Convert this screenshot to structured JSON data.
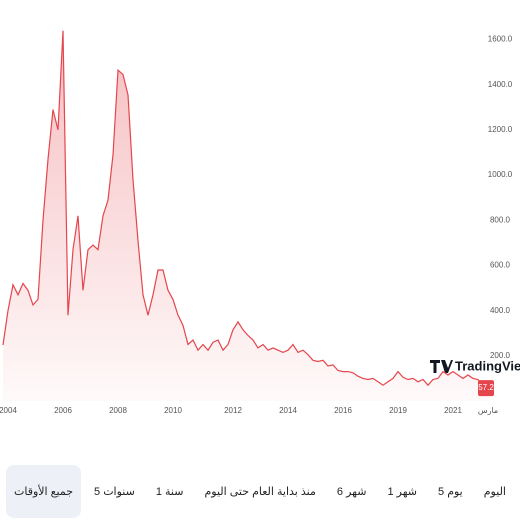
{
  "chart_data": {
    "type": "area",
    "categories": [
      null,
      "2004",
      null,
      null,
      null,
      null,
      null,
      null,
      null,
      null,
      null,
      null,
      "2006",
      null,
      null,
      null,
      null,
      null,
      null,
      null,
      null,
      null,
      null,
      "2008",
      null,
      null,
      null,
      null,
      null,
      null,
      null,
      null,
      null,
      null,
      "2010",
      null,
      null,
      null,
      null,
      null,
      null,
      null,
      null,
      null,
      null,
      null,
      "2012",
      null,
      null,
      null,
      null,
      null,
      null,
      null,
      null,
      null,
      null,
      "2014",
      null,
      null,
      null,
      null,
      null,
      null,
      null,
      null,
      null,
      null,
      "2016",
      null,
      null,
      null,
      null,
      null,
      null,
      null,
      null,
      null,
      null,
      "2019",
      null,
      null,
      null,
      null,
      null,
      null,
      null,
      null,
      null,
      null,
      "2021",
      null,
      null,
      null,
      null,
      null,
      null,
      "مارس"
    ],
    "series": [
      {
        "color": "#e5454d",
        "values": [
          248,
          400,
          515,
          470,
          520,
          490,
          425,
          450,
          800,
          1070,
          1290,
          1200,
          1640,
          380,
          670,
          820,
          490,
          670,
          690,
          670,
          820,
          890,
          1090,
          1465,
          1445,
          1355,
          980,
          710,
          470,
          380,
          470,
          580,
          580,
          490,
          450,
          380,
          335,
          250,
          270,
          225,
          250,
          225,
          260,
          270,
          225,
          250,
          315,
          350,
          315,
          290,
          270,
          235,
          250,
          225,
          235,
          225,
          215,
          225,
          250,
          215,
          225,
          205,
          180,
          175,
          180,
          155,
          160,
          135,
          130,
          130,
          125,
          110,
          100,
          95,
          100,
          85,
          70,
          85,
          100,
          130,
          105,
          95,
          100,
          85,
          95,
          70,
          95,
          100,
          130,
          115,
          130,
          115,
          100,
          115,
          100,
          95,
          70,
          57.2
        ]
      }
    ],
    "ylim": [
      0,
      1700
    ],
    "yticks": [
      {
        "value": 200,
        "label": "200.0"
      },
      {
        "value": 400,
        "label": "400.0"
      },
      {
        "value": 600,
        "label": "600.0"
      },
      {
        "value": 800,
        "label": "800.0"
      },
      {
        "value": 1000,
        "label": "1000.0"
      },
      {
        "value": 1200,
        "label": "1200.0"
      },
      {
        "value": 1400,
        "label": "1400.0"
      },
      {
        "value": 1600,
        "label": "1600.0"
      }
    ],
    "grid": false
  },
  "logo": "TradingView",
  "toolbar": [
    "اليوم",
    "5 يوم",
    "1 شهر",
    "6 شهر",
    "منذ بداية العام حتى اليوم",
    "1 سنة",
    "5 سنوات",
    "جميع الأوقات"
  ]
}
